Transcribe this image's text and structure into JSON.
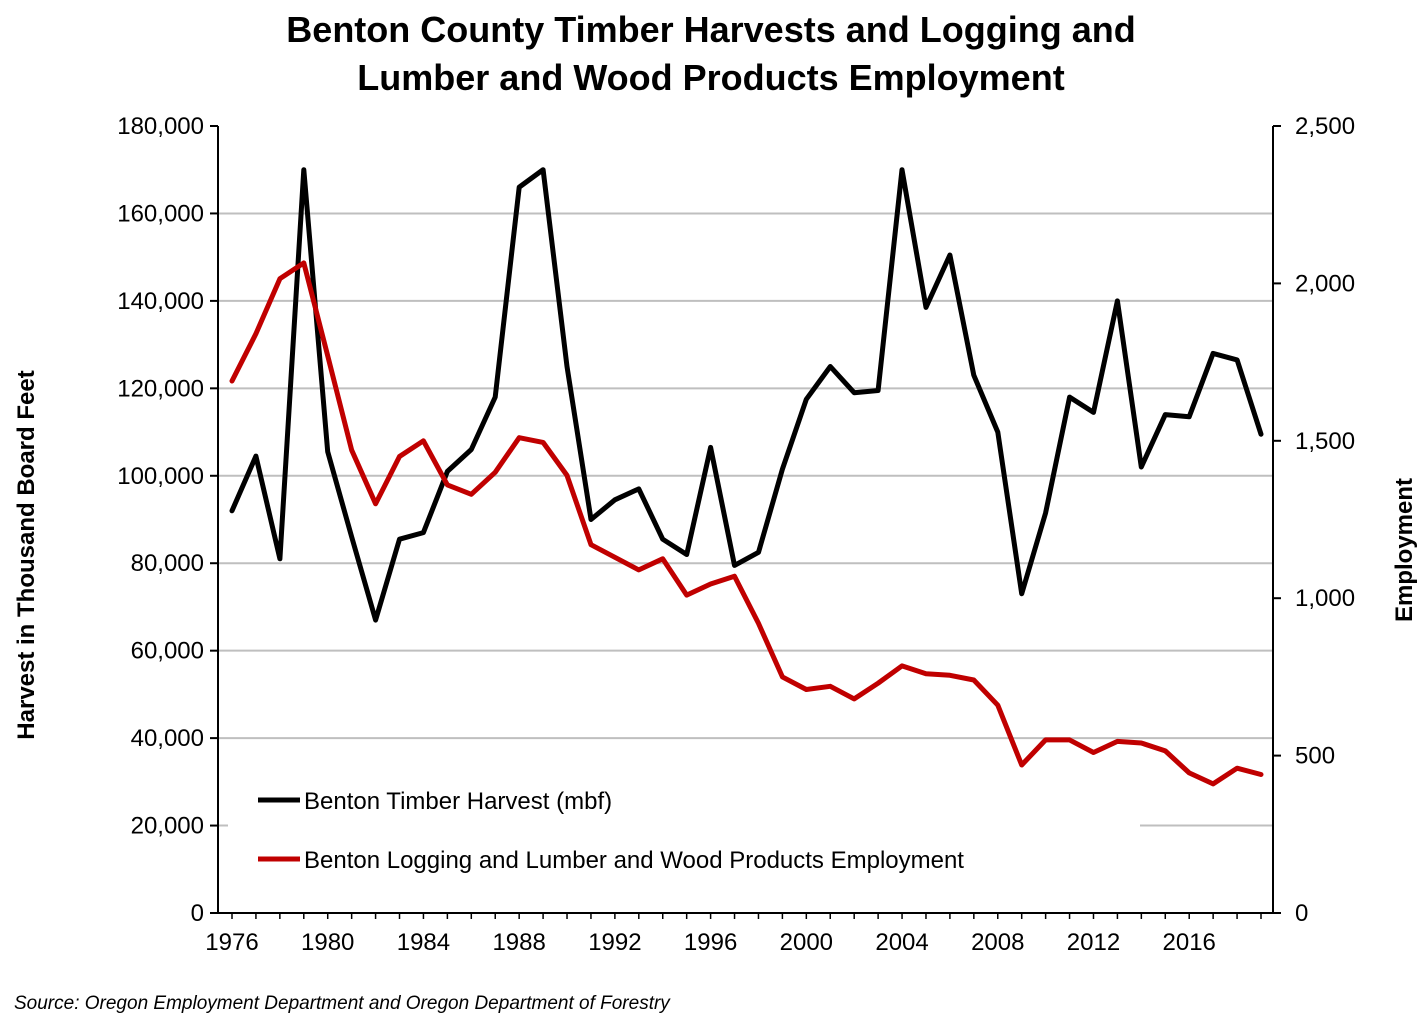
{
  "chart_data": {
    "type": "line",
    "title": [
      "Benton County Timber Harvests and Logging and",
      "Lumber and Wood Products Employment"
    ],
    "ylabel": "Harvest in Thousand Board Feet",
    "y2label": "Employment",
    "source": "Source: Oregon Employment Department and Oregon Department of Forestry",
    "ylim": [
      0,
      180000
    ],
    "y2lim": [
      0,
      2500
    ],
    "grid": true,
    "legend_position": "bottom-left",
    "y_ticks": [
      "0",
      "20,000",
      "40,000",
      "60,000",
      "80,000",
      "100,000",
      "120,000",
      "140,000",
      "160,000",
      "180,000"
    ],
    "y2_ticks": [
      "0",
      "500",
      "1,000",
      "1,500",
      "2,000",
      "2,500"
    ],
    "x_ticks": [
      "1976",
      "1980",
      "1984",
      "1988",
      "1992",
      "1996",
      "2000",
      "2004",
      "2008",
      "2012",
      "2016"
    ],
    "x": [
      1976,
      1977,
      1978,
      1979,
      1980,
      1981,
      1982,
      1983,
      1984,
      1985,
      1986,
      1987,
      1988,
      1989,
      1990,
      1991,
      1992,
      1993,
      1994,
      1995,
      1996,
      1997,
      1998,
      1999,
      2000,
      2001,
      2002,
      2003,
      2004,
      2005,
      2006,
      2007,
      2008,
      2009,
      2010,
      2011,
      2012,
      2013,
      2014,
      2015,
      2016,
      2017,
      2018,
      2019
    ],
    "series": [
      {
        "name": "Benton Timber Harvest (mbf)",
        "axis": "left",
        "color": "#000000",
        "values": [
          92000,
          104500,
          81000,
          170000,
          105500,
          86000,
          67000,
          85500,
          87000,
          101000,
          106000,
          118000,
          166000,
          170000,
          125000,
          90000,
          94500,
          97000,
          85500,
          82000,
          106500,
          79500,
          82500,
          101500,
          117500,
          125000,
          119000,
          119500,
          170000,
          138500,
          150500,
          123000,
          110000,
          73000,
          91500,
          118000,
          114500,
          140000,
          102000,
          114000,
          113500,
          128000,
          126500,
          109500
        ]
      },
      {
        "name": "Benton Logging and Lumber and Wood Products Employment",
        "axis": "right",
        "color": "#c00000",
        "values": [
          1690,
          1840,
          2015,
          2065,
          1770,
          1470,
          1300,
          1450,
          1500,
          1360,
          1330,
          1400,
          1510,
          1495,
          1390,
          1170,
          1130,
          1090,
          1125,
          1010,
          1045,
          1070,
          920,
          750,
          710,
          720,
          680,
          730,
          785,
          760,
          755,
          740,
          660,
          470,
          550,
          550,
          510,
          545,
          540,
          515,
          445,
          410,
          460,
          440
        ]
      }
    ]
  }
}
